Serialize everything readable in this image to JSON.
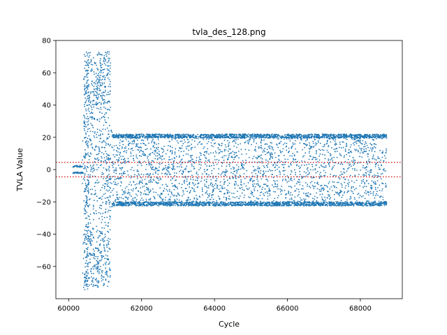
{
  "chart_data": {
    "type": "scatter",
    "title": "tvla_des_128.png",
    "xlabel": "Cycle",
    "ylabel": "TVLA Value",
    "xlim": [
      59650,
      69150
    ],
    "ylim": [
      -80,
      80
    ],
    "xticks": [
      60000,
      62000,
      64000,
      66000,
      68000
    ],
    "yticks": [
      -60,
      -40,
      -20,
      0,
      20,
      40,
      60,
      80
    ],
    "thresholds": [
      4.5,
      -4.5
    ],
    "grid": false,
    "series": [
      {
        "color": "#1f77b4",
        "threshold_color": "#d62728",
        "regions": [
          {
            "x_range": [
              60120,
              60400
            ],
            "y_pattern": "bands",
            "bands": [
              [
                -2.5,
                -1.5
              ],
              [
                1.5,
                2.5
              ]
            ],
            "points": 70
          },
          {
            "x_range": [
              60380,
              60550
            ],
            "y_pattern": "sparse_tails",
            "y_range": [
              -75,
              72
            ],
            "points": 140
          },
          {
            "x_range": [
              60430,
              61150
            ],
            "y_pattern": "extreme_clusters",
            "bands": [
              [
                -73,
                -40
              ],
              [
                40,
                73
              ]
            ],
            "fill_range": [
              -40,
              40
            ],
            "points": 900
          },
          {
            "x_range": [
              61000,
              61200
            ],
            "y_pattern": "uniform",
            "y_range": [
              -30,
              25
            ],
            "points": 60
          },
          {
            "x_range": [
              61200,
              68720
            ],
            "y_pattern": "banded_with_fill",
            "bands": [
              [
                -22.5,
                -20
              ],
              [
                19.5,
                22
              ]
            ],
            "fill_range": [
              -20,
              20
            ],
            "points": 5200
          }
        ]
      }
    ]
  }
}
